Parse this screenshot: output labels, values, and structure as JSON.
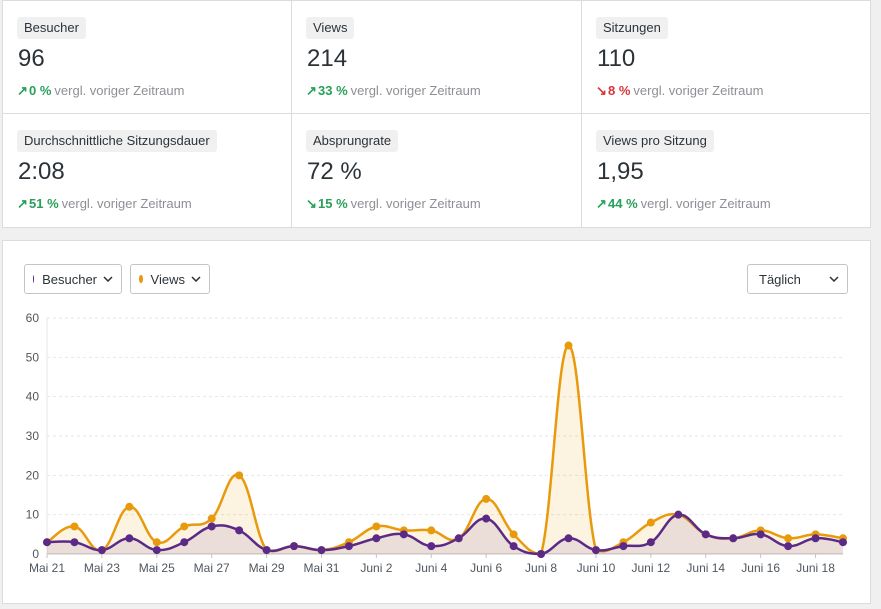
{
  "stats": [
    {
      "label": "Besucher",
      "value": "96",
      "pct": "0 %",
      "dir": "up",
      "cmp": "vergl. voriger Zeitraum"
    },
    {
      "label": "Views",
      "value": "214",
      "pct": "33 %",
      "dir": "up",
      "cmp": "vergl. voriger Zeitraum"
    },
    {
      "label": "Sitzungen",
      "value": "110",
      "pct": "8 %",
      "dir": "down",
      "cmp": "vergl. voriger Zeitraum"
    },
    {
      "label": "Durchschnittliche Sitzungsdauer",
      "value": "2:08",
      "pct": "51 %",
      "dir": "up",
      "cmp": "vergl. voriger Zeitraum"
    },
    {
      "label": "Absprungrate",
      "value": "72 %",
      "pct": "15 %",
      "dir": "down",
      "cmp": "vergl. voriger Zeitraum"
    },
    {
      "label": "Views pro Sitzung",
      "value": "1,95",
      "pct": "44 %",
      "dir": "up",
      "cmp": "vergl. voriger Zeitraum"
    }
  ],
  "chart_controls": {
    "visitors_label": "Besucher",
    "views_label": "Views",
    "interval": "Täglich"
  },
  "colors": {
    "visitors": "#5b2a86",
    "views": "#e89a0c",
    "positive": "#27a05a",
    "negative": "#d63638"
  },
  "chart_data": {
    "type": "line",
    "y_ticks": [
      "0",
      "10",
      "20",
      "30",
      "40",
      "50",
      "60"
    ],
    "ylim": [
      0,
      60
    ],
    "x_tick_labels": [
      "Mai 21",
      "Mai 23",
      "Mai 25",
      "Mai 27",
      "Mai 29",
      "Mai 31",
      "Juni 2",
      "Juni 4",
      "Juni 6",
      "Juni 8",
      "Juni 10",
      "Juni 12",
      "Juni 14",
      "Juni 16",
      "Juni 18"
    ],
    "x": [
      "Mai 21",
      "Mai 22",
      "Mai 23",
      "Mai 24",
      "Mai 25",
      "Mai 26",
      "Mai 27",
      "Mai 28",
      "Mai 29",
      "Mai 30",
      "Mai 31",
      "Juni 1",
      "Juni 2",
      "Juni 3",
      "Juni 4",
      "Juni 5",
      "Juni 6",
      "Juni 7",
      "Juni 8",
      "Juni 9",
      "Juni 10",
      "Juni 11",
      "Juni 12",
      "Juni 13",
      "Juni 14",
      "Juni 15",
      "Juni 16",
      "Juni 17",
      "Juni 18",
      "Juni 19"
    ],
    "series": [
      {
        "name": "Besucher",
        "values": [
          3,
          3,
          1,
          4,
          1,
          3,
          7,
          6,
          1,
          2,
          1,
          2,
          4,
          5,
          2,
          4,
          9,
          2,
          0,
          4,
          1,
          2,
          3,
          10,
          5,
          4,
          5,
          2,
          4,
          3
        ]
      },
      {
        "name": "Views",
        "values": [
          3,
          7,
          1,
          12,
          3,
          7,
          9,
          20,
          1,
          2,
          1,
          3,
          7,
          6,
          6,
          4,
          14,
          5,
          0,
          53,
          1,
          3,
          8,
          10,
          5,
          4,
          6,
          4,
          5,
          4
        ]
      }
    ],
    "grid": true
  }
}
